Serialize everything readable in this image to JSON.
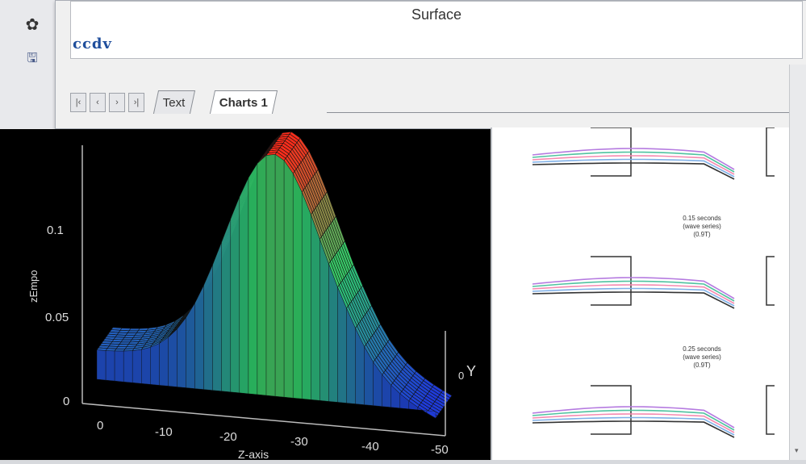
{
  "chart_window": {
    "title": "Surface",
    "brand": "ccdv",
    "tabs": [
      {
        "label": "Text",
        "active": false
      },
      {
        "label": "Charts 1",
        "active": true
      }
    ],
    "nav_buttons": [
      "|‹",
      "‹",
      "›",
      "›|"
    ]
  },
  "toolbar": {
    "items": [
      {
        "icon": "gear-icon",
        "glyph": "✿"
      },
      {
        "icon": "save-icon",
        "glyph": "🖫"
      }
    ]
  },
  "surface_plot": {
    "y_axis_label": "zEmpo",
    "y_ticks": [
      "0",
      "0.05",
      "0.1"
    ],
    "x_ticks": [
      "0",
      "-10",
      "-20",
      "-30",
      "-40",
      "-50"
    ],
    "depth_axis_label": "Y",
    "depth_tick": "0",
    "x_axis_label": "Z-axis",
    "colors": {
      "low": "#1f3bd9",
      "mid": "#2fd06a",
      "high": "#ff2a1a"
    }
  },
  "thumbnails": [
    {
      "label_lines": [],
      "row": 0
    },
    {
      "label_lines": [
        "0.15 seconds",
        "(wave series)",
        "(0.9T)"
      ],
      "row": 1
    },
    {
      "label_lines": [
        "0.25 seconds",
        "(wave series)",
        "(0.9T)"
      ],
      "row": 2
    }
  ]
}
